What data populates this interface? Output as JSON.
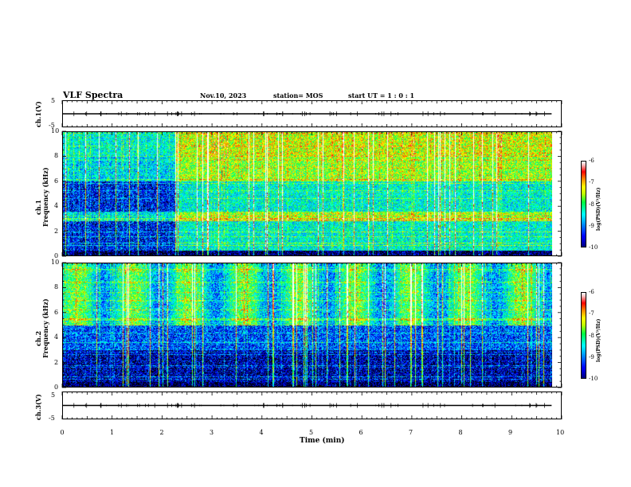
{
  "header": {
    "title": "VLF Spectra",
    "date": "Nov.10, 2023",
    "station": "station= MOS",
    "start": "start  UT =   1 : 0  : 1"
  },
  "chart_data": [
    {
      "type": "line",
      "name": "ch1-waveform",
      "ylabel": "ch.1(V)",
      "ylim": [
        -5,
        5
      ],
      "yticks": [
        "5",
        "-5"
      ],
      "x": [
        0,
        9.83
      ],
      "values": [
        0,
        0
      ]
    },
    {
      "type": "heatmap",
      "name": "ch1-spectrogram",
      "ylabel": "ch.1\nFrequency (kHz)",
      "ylim": [
        0,
        10
      ],
      "yticks": [
        "0",
        "2",
        "4",
        "6",
        "8",
        "10"
      ],
      "xlim": [
        0,
        9.83
      ],
      "colorbar": {
        "label": "log(PSD)(V²/Hz)",
        "ticks": [
          "-6",
          "-7",
          "-8",
          "-9",
          "-10"
        ],
        "range": [
          -10,
          -6
        ]
      }
    },
    {
      "type": "heatmap",
      "name": "ch2-spectrogram",
      "ylabel": "ch.2\nFrequency (kHz)",
      "ylim": [
        0,
        10
      ],
      "yticks": [
        "0",
        "2",
        "4",
        "6",
        "8",
        "10"
      ],
      "xlim": [
        0,
        9.83
      ],
      "colorbar": {
        "label": "log(PSD)(V²/Hz)",
        "ticks": [
          "-6",
          "-7",
          "-8",
          "-9",
          "-10"
        ],
        "range": [
          -10,
          -6
        ]
      }
    },
    {
      "type": "line",
      "name": "ch3-waveform",
      "ylabel": "ch.3(V)",
      "ylim": [
        -5,
        5
      ],
      "yticks": [
        "5",
        "-5"
      ],
      "x": [
        0,
        9.83
      ],
      "values": [
        0,
        0
      ]
    }
  ],
  "xaxis": {
    "label": "Time  (min)",
    "xlim": [
      0,
      10
    ],
    "ticks": [
      "0",
      "1",
      "2",
      "3",
      "4",
      "5",
      "6",
      "7",
      "8",
      "9",
      "10"
    ]
  },
  "labels": {
    "ch1v": "ch.1(V)",
    "ch1a": "ch.1",
    "ch1b": "Frequency (kHz)",
    "ch2a": "ch.2",
    "ch2b": "Frequency (kHz)",
    "ch3v": "ch.3(V)",
    "cb": "log(PSD)(V²/Hz)"
  },
  "ticks": {
    "wave": [
      "5",
      "-5"
    ],
    "freq": [
      "0",
      "2",
      "4",
      "6",
      "8",
      "10"
    ],
    "cb": [
      "-6",
      "-7",
      "-8",
      "-9",
      "-10"
    ]
  }
}
